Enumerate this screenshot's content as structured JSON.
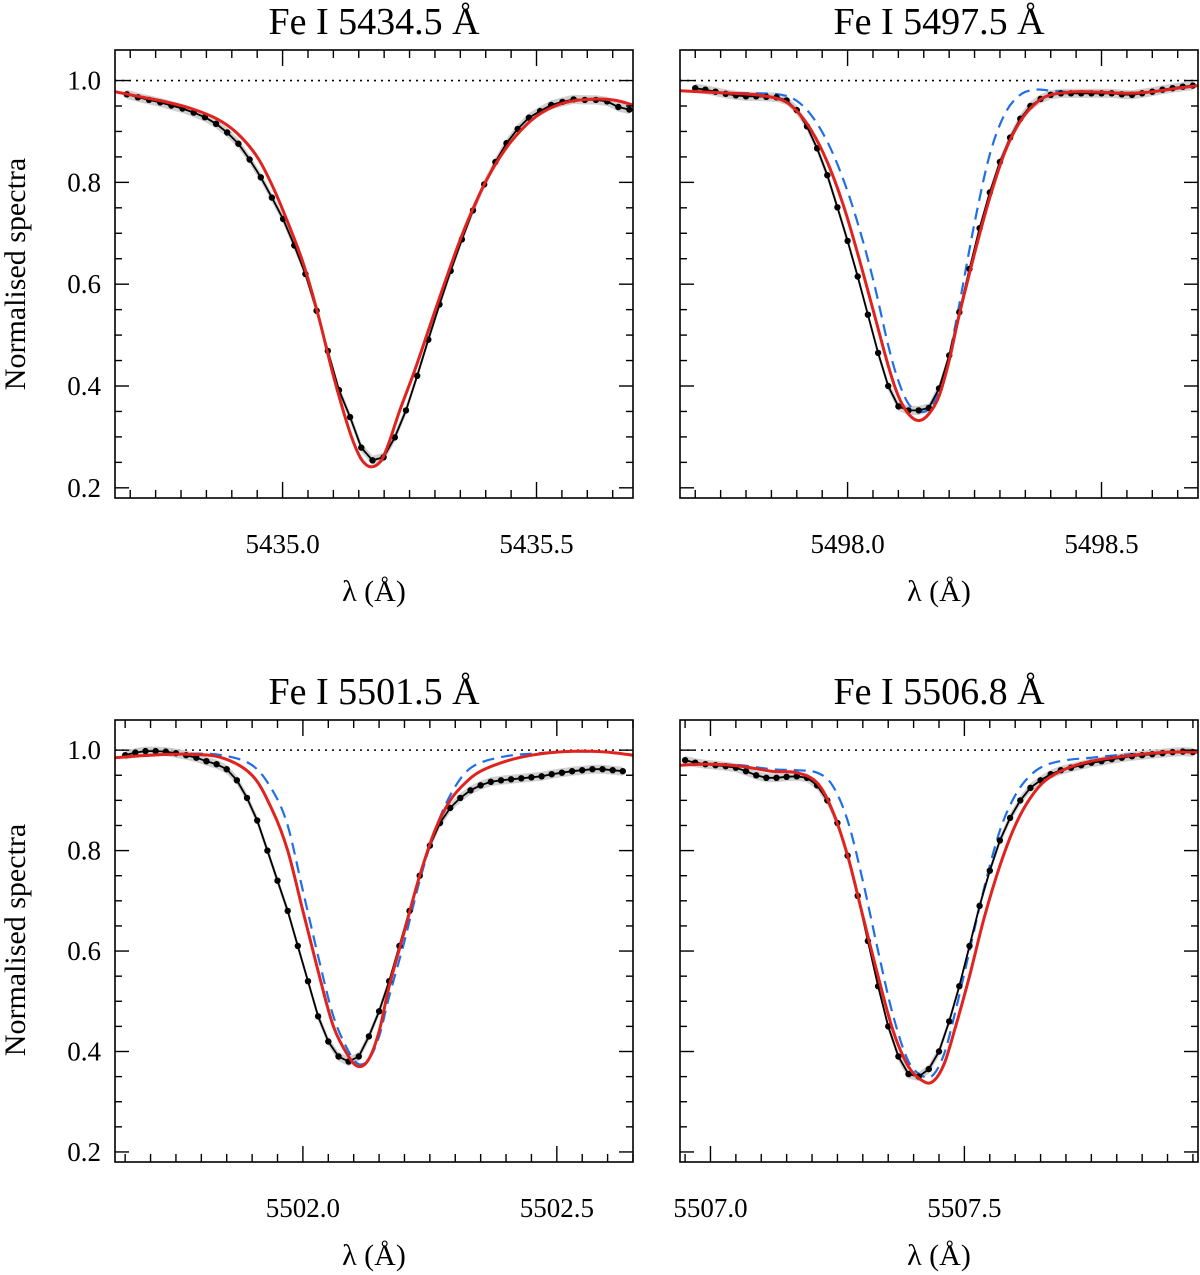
{
  "figure": {
    "ylabel": "Normalised spectra",
    "xlabel": "λ (Å)",
    "colors": {
      "observed": "#000000",
      "band": "#c8c8c8",
      "model_red": "#e0231e",
      "model_blue": "#1f6fe8",
      "continuum": "#000000"
    }
  },
  "chart_data": [
    {
      "type": "line",
      "title": "Fe I  5434.5 Å",
      "xlabel": "λ (Å)",
      "ylabel": "Normalised spectra",
      "xlim": [
        5434.67,
        5435.69
      ],
      "ylim": [
        0.18,
        1.06
      ],
      "xticks": [
        5435.0,
        5435.5
      ],
      "xtick_labels": [
        "5435.0",
        "5435.5"
      ],
      "yticks": [
        0.2,
        0.4,
        0.6,
        0.8,
        1.0
      ],
      "ytick_labels": [
        "0.2",
        "0.4",
        "0.6",
        "0.8",
        "1.0"
      ],
      "continuum": 1.0,
      "series": [
        {
          "name": "observed",
          "style": "line-dots",
          "x": [
            5434.693,
            5434.715,
            5434.737,
            5434.759,
            5434.781,
            5434.803,
            5434.825,
            5434.847,
            5434.869,
            5434.891,
            5434.913,
            5434.935,
            5434.957,
            5434.979,
            5435.001,
            5435.023,
            5435.045,
            5435.067,
            5435.089,
            5435.111,
            5435.133,
            5435.155,
            5435.177,
            5435.199,
            5435.221,
            5435.243,
            5435.265,
            5435.287,
            5435.309,
            5435.331,
            5435.353,
            5435.375,
            5435.397,
            5435.419,
            5435.441,
            5435.463,
            5435.485,
            5435.507,
            5435.529,
            5435.551,
            5435.573,
            5435.595,
            5435.617,
            5435.639,
            5435.661,
            5435.683
          ],
          "y": [
            0.973,
            0.967,
            0.962,
            0.957,
            0.951,
            0.945,
            0.937,
            0.928,
            0.915,
            0.898,
            0.876,
            0.845,
            0.81,
            0.77,
            0.728,
            0.676,
            0.62,
            0.548,
            0.469,
            0.392,
            0.339,
            0.279,
            0.254,
            0.26,
            0.299,
            0.352,
            0.42,
            0.491,
            0.56,
            0.626,
            0.688,
            0.745,
            0.796,
            0.84,
            0.877,
            0.905,
            0.927,
            0.94,
            0.952,
            0.958,
            0.963,
            0.962,
            0.962,
            0.959,
            0.948,
            0.943
          ]
        },
        {
          "name": "model_red",
          "style": "solid",
          "x": [
            5434.67,
            5434.72,
            5434.77,
            5434.82,
            5434.87,
            5434.91,
            5434.95,
            5434.98,
            5435.01,
            5435.04,
            5435.07,
            5435.1,
            5435.13,
            5435.15,
            5435.165,
            5435.18,
            5435.195,
            5435.21,
            5435.23,
            5435.26,
            5435.29,
            5435.32,
            5435.35,
            5435.38,
            5435.41,
            5435.45,
            5435.5,
            5435.55,
            5435.6,
            5435.65,
            5435.69
          ],
          "y": [
            0.978,
            0.968,
            0.958,
            0.945,
            0.925,
            0.897,
            0.85,
            0.793,
            0.722,
            0.643,
            0.54,
            0.42,
            0.317,
            0.265,
            0.245,
            0.242,
            0.255,
            0.29,
            0.35,
            0.43,
            0.518,
            0.605,
            0.688,
            0.76,
            0.82,
            0.88,
            0.93,
            0.955,
            0.963,
            0.962,
            0.952
          ]
        }
      ]
    },
    {
      "type": "line",
      "title": "Fe I  5497.5 Å",
      "xlabel": "λ (Å)",
      "ylabel": "Normalised spectra",
      "xlim": [
        5497.67,
        5498.69
      ],
      "ylim": [
        0.18,
        1.06
      ],
      "xticks": [
        5498.0,
        5498.5
      ],
      "xtick_labels": [
        "5498.0",
        "5498.5"
      ],
      "yticks": [
        0.2,
        0.4,
        0.6,
        0.8,
        1.0
      ],
      "ytick_labels": [
        "0.2",
        "0.4",
        "0.6",
        "0.8",
        "1.0"
      ],
      "continuum": 1.0,
      "series": [
        {
          "name": "observed",
          "style": "line-dots",
          "x": [
            5497.7,
            5497.72,
            5497.74,
            5497.76,
            5497.78,
            5497.8,
            5497.82,
            5497.84,
            5497.86,
            5497.88,
            5497.9,
            5497.92,
            5497.94,
            5497.96,
            5497.98,
            5498.0,
            5498.02,
            5498.04,
            5498.06,
            5498.08,
            5498.1,
            5498.12,
            5498.14,
            5498.16,
            5498.18,
            5498.2,
            5498.22,
            5498.24,
            5498.26,
            5498.28,
            5498.3,
            5498.32,
            5498.34,
            5498.36,
            5498.38,
            5498.4,
            5498.42,
            5498.44,
            5498.46,
            5498.48,
            5498.5,
            5498.52,
            5498.54,
            5498.56,
            5498.58,
            5498.6,
            5498.62,
            5498.64,
            5498.66,
            5498.68
          ],
          "y": [
            0.985,
            0.982,
            0.978,
            0.974,
            0.971,
            0.969,
            0.969,
            0.968,
            0.967,
            0.961,
            0.942,
            0.91,
            0.867,
            0.814,
            0.751,
            0.685,
            0.615,
            0.54,
            0.465,
            0.4,
            0.36,
            0.352,
            0.352,
            0.357,
            0.395,
            0.46,
            0.545,
            0.63,
            0.71,
            0.78,
            0.84,
            0.888,
            0.925,
            0.95,
            0.964,
            0.972,
            0.975,
            0.975,
            0.975,
            0.975,
            0.975,
            0.975,
            0.973,
            0.972,
            0.975,
            0.978,
            0.982,
            0.985,
            0.988,
            0.99
          ]
        },
        {
          "name": "model_red",
          "style": "solid",
          "x": [
            5497.67,
            5497.75,
            5497.82,
            5497.87,
            5497.9,
            5497.93,
            5497.96,
            5497.99,
            5498.02,
            5498.05,
            5498.08,
            5498.1,
            5498.12,
            5498.14,
            5498.16,
            5498.18,
            5498.2,
            5498.22,
            5498.25,
            5498.28,
            5498.31,
            5498.34,
            5498.37,
            5498.4,
            5498.45,
            5498.5,
            5498.55,
            5498.6,
            5498.65,
            5498.69
          ],
          "y": [
            0.98,
            0.976,
            0.972,
            0.962,
            0.94,
            0.9,
            0.84,
            0.76,
            0.66,
            0.55,
            0.44,
            0.38,
            0.345,
            0.332,
            0.345,
            0.38,
            0.45,
            0.54,
            0.66,
            0.77,
            0.86,
            0.92,
            0.955,
            0.972,
            0.978,
            0.977,
            0.975,
            0.978,
            0.985,
            0.99
          ]
        },
        {
          "name": "model_blue",
          "style": "dashed",
          "x": [
            5497.67,
            5497.75,
            5497.82,
            5497.87,
            5497.9,
            5497.93,
            5497.96,
            5497.99,
            5498.02,
            5498.05,
            5498.08,
            5498.1,
            5498.12,
            5498.14,
            5498.16,
            5498.18,
            5498.2,
            5498.22,
            5498.25,
            5498.28,
            5498.31,
            5498.34,
            5498.37,
            5498.4,
            5498.45,
            5498.5,
            5498.55,
            5498.6,
            5498.65,
            5498.69
          ],
          "y": [
            0.98,
            0.976,
            0.975,
            0.972,
            0.96,
            0.93,
            0.88,
            0.81,
            0.72,
            0.61,
            0.48,
            0.41,
            0.365,
            0.35,
            0.355,
            0.39,
            0.46,
            0.56,
            0.72,
            0.855,
            0.935,
            0.972,
            0.982,
            0.98,
            0.977,
            0.977,
            0.975,
            0.978,
            0.985,
            0.99
          ]
        }
      ]
    },
    {
      "type": "line",
      "title": "Fe I  5501.5 Å",
      "xlabel": "λ (Å)",
      "ylabel": "Normalised spectra",
      "xlim": [
        5501.63,
        5502.65
      ],
      "ylim": [
        0.18,
        1.06
      ],
      "xticks": [
        5502.0,
        5502.5
      ],
      "xtick_labels": [
        "5502.0",
        "5502.5"
      ],
      "yticks": [
        0.2,
        0.4,
        0.6,
        0.8,
        1.0
      ],
      "ytick_labels": [
        "0.2",
        "0.4",
        "0.6",
        "0.8",
        "1.0"
      ],
      "continuum": 1.0,
      "series": [
        {
          "name": "observed",
          "style": "line-dots",
          "x": [
            5501.65,
            5501.67,
            5501.69,
            5501.71,
            5501.73,
            5501.75,
            5501.77,
            5501.79,
            5501.81,
            5501.83,
            5501.85,
            5501.87,
            5501.89,
            5501.91,
            5501.93,
            5501.95,
            5501.97,
            5501.99,
            5502.01,
            5502.03,
            5502.05,
            5502.07,
            5502.09,
            5502.11,
            5502.13,
            5502.15,
            5502.17,
            5502.19,
            5502.21,
            5502.23,
            5502.25,
            5502.27,
            5502.29,
            5502.31,
            5502.33,
            5502.35,
            5502.37,
            5502.39,
            5502.41,
            5502.43,
            5502.45,
            5502.47,
            5502.49,
            5502.51,
            5502.53,
            5502.55,
            5502.57,
            5502.59,
            5502.61,
            5502.63
          ],
          "y": [
            0.99,
            0.995,
            0.998,
            0.998,
            0.997,
            0.994,
            0.99,
            0.985,
            0.978,
            0.972,
            0.962,
            0.94,
            0.905,
            0.86,
            0.8,
            0.74,
            0.68,
            0.61,
            0.54,
            0.47,
            0.42,
            0.39,
            0.38,
            0.39,
            0.43,
            0.48,
            0.54,
            0.61,
            0.68,
            0.75,
            0.81,
            0.855,
            0.885,
            0.905,
            0.92,
            0.93,
            0.937,
            0.94,
            0.942,
            0.944,
            0.946,
            0.948,
            0.952,
            0.955,
            0.958,
            0.96,
            0.962,
            0.962,
            0.96,
            0.958
          ]
        },
        {
          "name": "model_red",
          "style": "solid",
          "x": [
            5501.63,
            5501.7,
            5501.77,
            5501.84,
            5501.9,
            5501.94,
            5501.97,
            5502.0,
            5502.03,
            5502.06,
            5502.09,
            5502.11,
            5502.13,
            5502.15,
            5502.17,
            5502.2,
            5502.23,
            5502.26,
            5502.29,
            5502.32,
            5502.35,
            5502.4,
            5502.45,
            5502.5,
            5502.55,
            5502.6,
            5502.65
          ],
          "y": [
            0.985,
            0.99,
            0.992,
            0.985,
            0.95,
            0.88,
            0.8,
            0.68,
            0.56,
            0.45,
            0.39,
            0.37,
            0.385,
            0.44,
            0.53,
            0.64,
            0.75,
            0.84,
            0.9,
            0.935,
            0.958,
            0.978,
            0.99,
            0.996,
            0.998,
            0.996,
            0.99
          ]
        },
        {
          "name": "model_blue",
          "style": "dashed",
          "x": [
            5501.63,
            5501.7,
            5501.77,
            5501.84,
            5501.9,
            5501.94,
            5501.97,
            5502.0,
            5502.03,
            5502.06,
            5502.09,
            5502.11,
            5502.13,
            5502.15,
            5502.17,
            5502.2,
            5502.23,
            5502.26,
            5502.29,
            5502.32,
            5502.35,
            5502.4,
            5502.45,
            5502.5,
            5502.55,
            5502.6,
            5502.65
          ],
          "y": [
            0.985,
            0.99,
            0.993,
            0.99,
            0.97,
            0.92,
            0.85,
            0.72,
            0.59,
            0.47,
            0.4,
            0.375,
            0.385,
            0.43,
            0.51,
            0.62,
            0.74,
            0.84,
            0.91,
            0.955,
            0.975,
            0.988,
            0.993,
            0.996,
            0.997,
            0.996,
            0.99
          ]
        }
      ]
    },
    {
      "type": "line",
      "title": "Fe I  5506.8 Å",
      "xlabel": "λ (Å)",
      "ylabel": "Normalised spectra",
      "xlim": [
        5506.94,
        5507.96
      ],
      "ylim": [
        0.18,
        1.06
      ],
      "xticks": [
        5507.0,
        5507.5
      ],
      "xtick_labels": [
        "5507.0",
        "5507.5"
      ],
      "yticks": [
        0.2,
        0.4,
        0.6,
        0.8,
        1.0
      ],
      "ytick_labels": [
        "0.2",
        "0.4",
        "0.6",
        "0.8",
        "1.0"
      ],
      "continuum": 1.0,
      "series": [
        {
          "name": "observed",
          "style": "line-dots",
          "x": [
            5506.95,
            5506.97,
            5506.99,
            5507.01,
            5507.03,
            5507.05,
            5507.07,
            5507.09,
            5507.11,
            5507.13,
            5507.15,
            5507.17,
            5507.19,
            5507.21,
            5507.23,
            5507.25,
            5507.27,
            5507.29,
            5507.31,
            5507.33,
            5507.35,
            5507.37,
            5507.39,
            5507.41,
            5507.43,
            5507.45,
            5507.47,
            5507.49,
            5507.51,
            5507.53,
            5507.55,
            5507.57,
            5507.59,
            5507.61,
            5507.63,
            5507.65,
            5507.67,
            5507.69,
            5507.71,
            5507.73,
            5507.75,
            5507.77,
            5507.79,
            5507.81,
            5507.83,
            5507.85,
            5507.87,
            5507.89,
            5507.91,
            5507.93,
            5507.95
          ],
          "y": [
            0.98,
            0.975,
            0.972,
            0.97,
            0.968,
            0.965,
            0.958,
            0.95,
            0.945,
            0.945,
            0.947,
            0.948,
            0.945,
            0.93,
            0.9,
            0.855,
            0.79,
            0.71,
            0.62,
            0.53,
            0.45,
            0.39,
            0.355,
            0.35,
            0.365,
            0.4,
            0.46,
            0.53,
            0.61,
            0.69,
            0.76,
            0.82,
            0.865,
            0.9,
            0.925,
            0.94,
            0.952,
            0.96,
            0.965,
            0.97,
            0.975,
            0.978,
            0.982,
            0.985,
            0.988,
            0.99,
            0.992,
            0.994,
            0.996,
            0.997,
            0.996
          ]
        },
        {
          "name": "model_red",
          "style": "solid",
          "x": [
            5506.94,
            5507.0,
            5507.06,
            5507.12,
            5507.17,
            5507.21,
            5507.24,
            5507.27,
            5507.3,
            5507.33,
            5507.36,
            5507.39,
            5507.42,
            5507.44,
            5507.46,
            5507.48,
            5507.51,
            5507.54,
            5507.57,
            5507.6,
            5507.63,
            5507.66,
            5507.7,
            5507.75,
            5507.8,
            5507.85,
            5507.9,
            5507.96
          ],
          "y": [
            0.97,
            0.972,
            0.968,
            0.958,
            0.955,
            0.935,
            0.88,
            0.79,
            0.67,
            0.55,
            0.44,
            0.37,
            0.34,
            0.342,
            0.375,
            0.44,
            0.55,
            0.67,
            0.77,
            0.85,
            0.905,
            0.94,
            0.963,
            0.978,
            0.986,
            0.992,
            0.996,
            0.996
          ]
        },
        {
          "name": "model_blue",
          "style": "dashed",
          "x": [
            5506.94,
            5507.0,
            5507.06,
            5507.12,
            5507.17,
            5507.21,
            5507.24,
            5507.27,
            5507.3,
            5507.33,
            5507.36,
            5507.39,
            5507.42,
            5507.44,
            5507.46,
            5507.48,
            5507.51,
            5507.54,
            5507.57,
            5507.6,
            5507.63,
            5507.66,
            5507.7,
            5507.75,
            5507.8,
            5507.85,
            5507.9,
            5507.96
          ],
          "y": [
            0.97,
            0.972,
            0.97,
            0.962,
            0.96,
            0.955,
            0.93,
            0.86,
            0.74,
            0.6,
            0.47,
            0.38,
            0.35,
            0.355,
            0.395,
            0.47,
            0.6,
            0.73,
            0.84,
            0.91,
            0.95,
            0.97,
            0.98,
            0.985,
            0.99,
            0.993,
            0.996,
            0.996
          ]
        }
      ]
    }
  ]
}
